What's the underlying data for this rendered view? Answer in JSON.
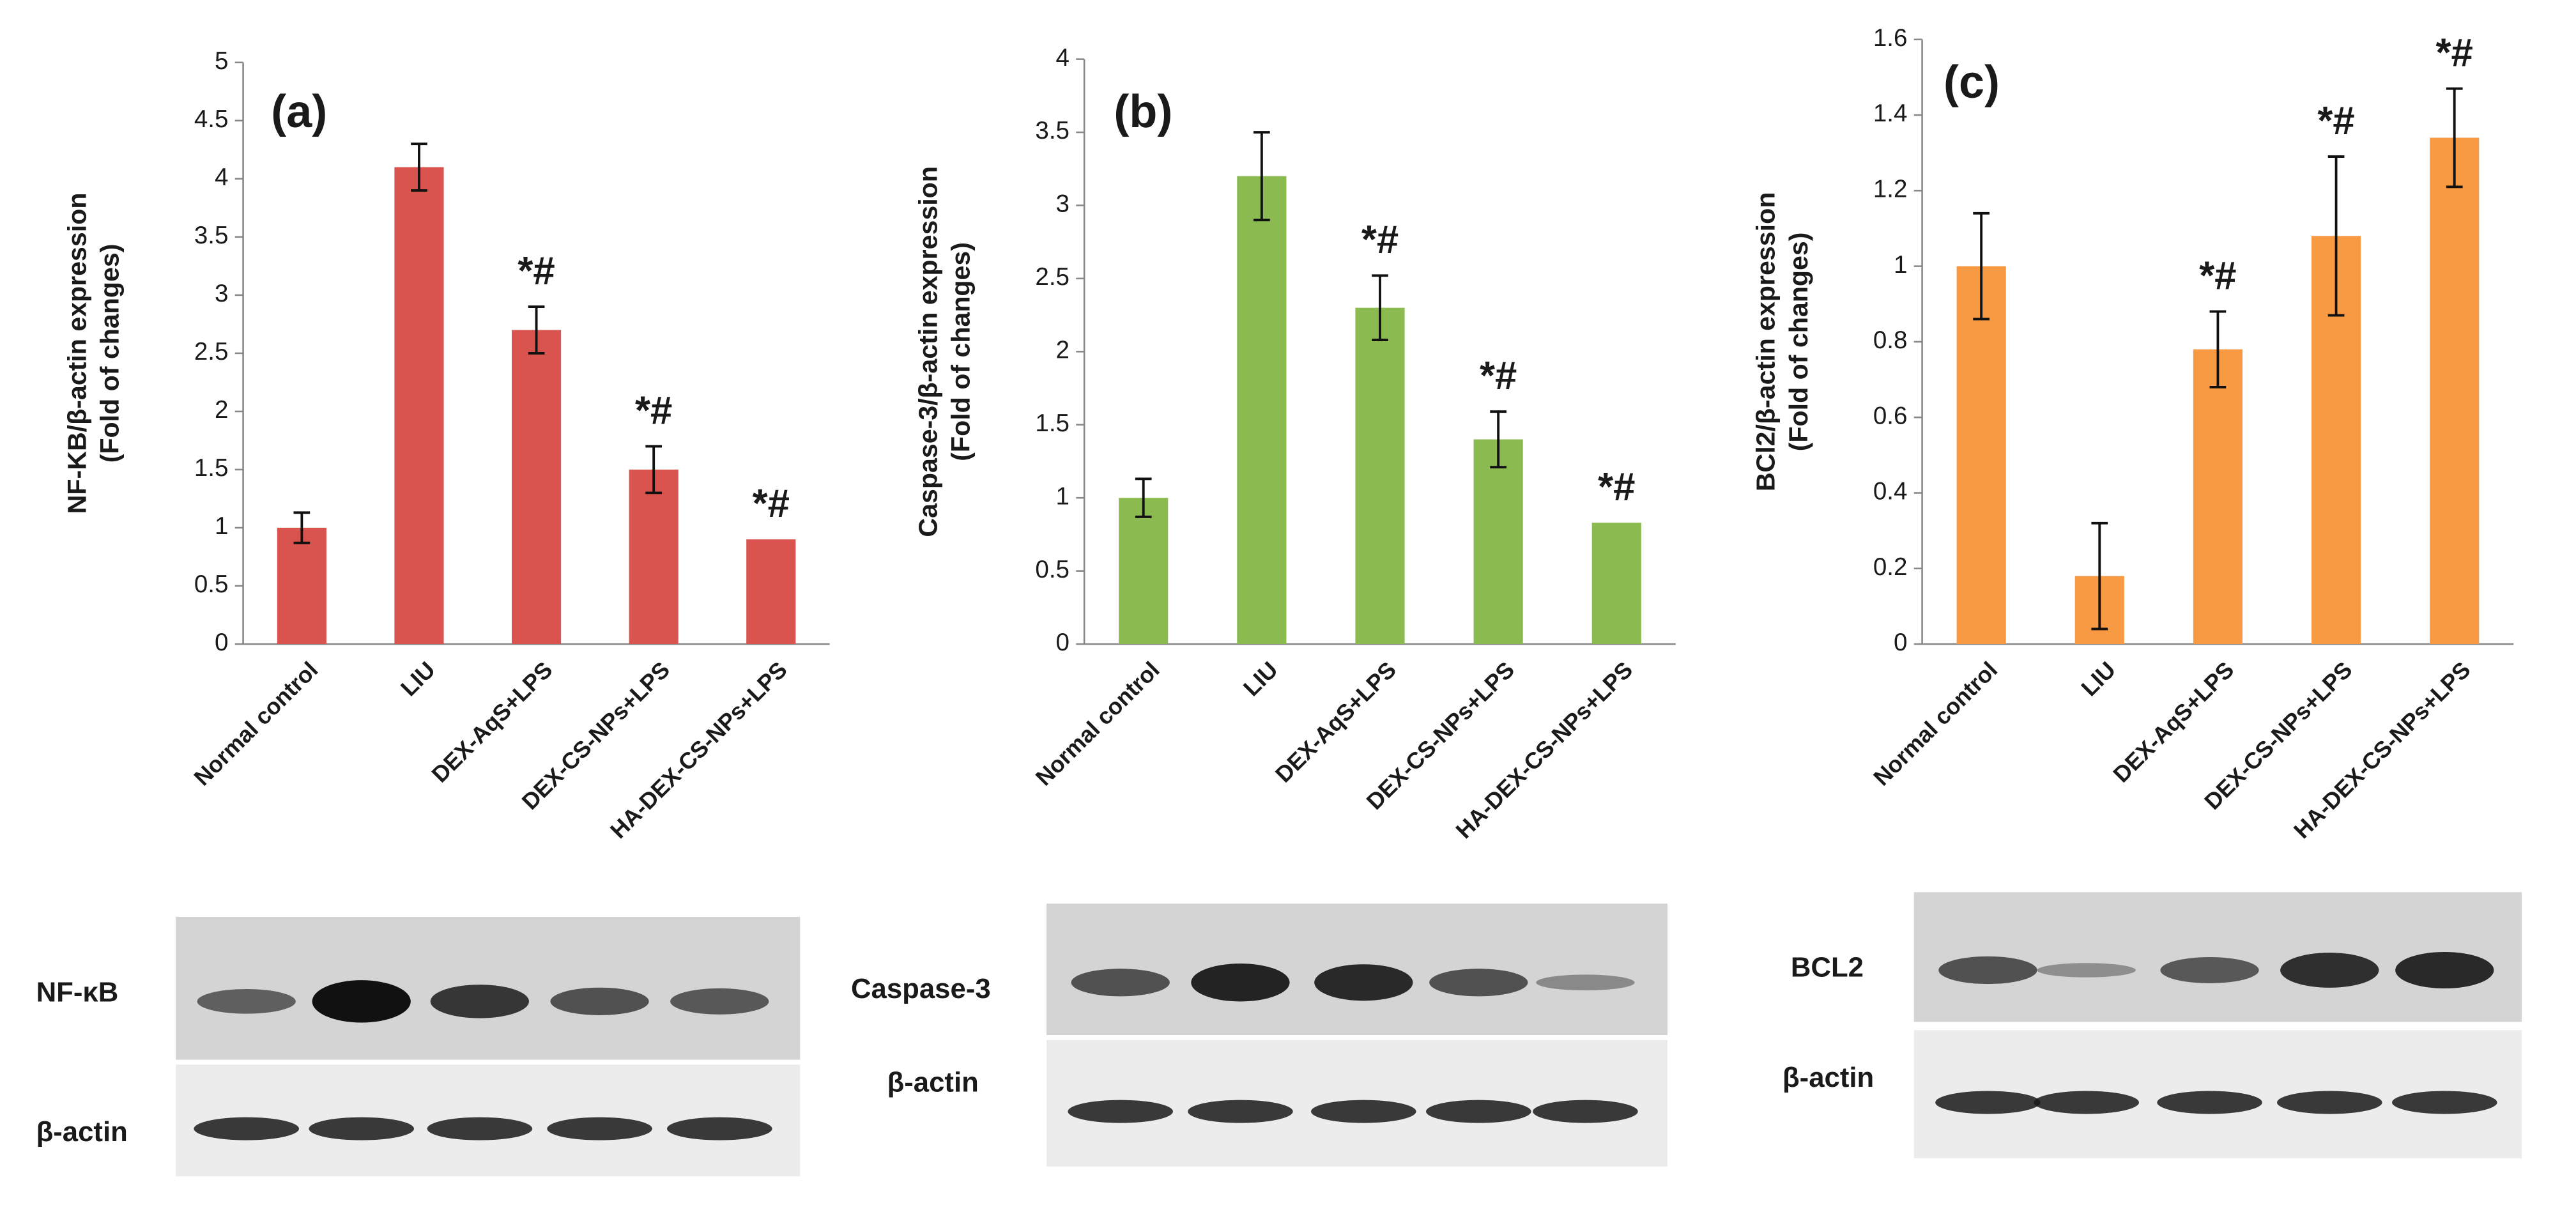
{
  "chart_data": [
    {
      "type": "bar",
      "panel": "(a)",
      "ylabel": [
        "NF-KB/β-actin expression",
        "(Fold of changes)"
      ],
      "categories": [
        "Normal control",
        "LIU",
        "DEX-AqS+LPS",
        "DEX-CS-NPs+LPS",
        "HA-DEX-CS-NPs+LPS"
      ],
      "values": [
        1,
        4.1,
        2.7,
        1.5,
        0.9
      ],
      "errors": [
        0.13,
        0.2,
        0.2,
        0.2,
        null
      ],
      "annotations": [
        null,
        null,
        "*#",
        "*#",
        "*#"
      ],
      "color": "#d9534f",
      "ylim": [
        0,
        5
      ],
      "yticks": [
        0,
        0.5,
        1,
        1.5,
        2,
        2.5,
        3,
        3.5,
        4,
        4.5,
        5
      ]
    },
    {
      "type": "bar",
      "panel": "(b)",
      "ylabel": [
        "Caspase-3/β-actin expression",
        "(Fold of changes)"
      ],
      "categories": [
        "Normal control",
        "LIU",
        "DEX-AqS+LPS",
        "DEX-CS-NPs+LPS",
        "HA-DEX-CS-NPs+LPS"
      ],
      "values": [
        1,
        3.2,
        2.3,
        1.4,
        0.83
      ],
      "errors": [
        0.13,
        0.3,
        0.22,
        0.19,
        null
      ],
      "annotations": [
        null,
        null,
        "*#",
        "*#",
        "*#"
      ],
      "color": "#8bbb50",
      "ylim": [
        0,
        4
      ],
      "yticks": [
        0,
        0.5,
        1,
        1.5,
        2,
        2.5,
        3,
        3.5,
        4
      ]
    },
    {
      "type": "bar",
      "panel": "(c)",
      "ylabel": [
        "BCl2/β-actin expression",
        "(Fold of changes)"
      ],
      "categories": [
        "Normal control",
        "LIU",
        "DEX-AqS+LPS",
        "DEX-CS-NPs+LPS",
        "HA-DEX-CS-NPs+LPS"
      ],
      "values": [
        1,
        0.18,
        0.78,
        1.08,
        1.34
      ],
      "errors": [
        0.14,
        0.14,
        0.1,
        0.21,
        0.13
      ],
      "annotations": [
        null,
        null,
        "*#",
        "*#",
        "*#"
      ],
      "color": "#f89a43",
      "ylim": [
        0,
        1.6
      ],
      "yticks": [
        0,
        0.2,
        0.4,
        0.6,
        0.8,
        1,
        1.2,
        1.4,
        1.6
      ]
    }
  ],
  "blots": [
    {
      "labels": [
        "NF-κB",
        "β-actin"
      ]
    },
    {
      "labels": [
        "Caspase-3",
        "β-actin"
      ]
    },
    {
      "labels": [
        "BCL2",
        "β-actin"
      ]
    }
  ]
}
